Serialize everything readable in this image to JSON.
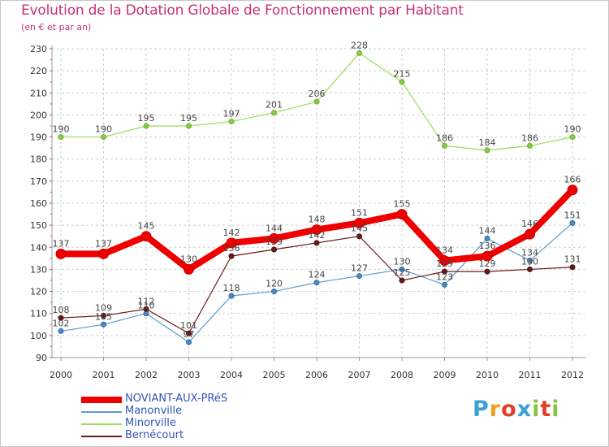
{
  "header": {
    "title": "Evolution de la Dotation Globale de Fonctionnement par Habitant",
    "subtitle": "(en € et par an)"
  },
  "logo": {
    "text": "Proxiti"
  },
  "colors": {
    "noviant": "#ee0000",
    "manonville": "#5b9bd5",
    "minorville": "#99dd55",
    "bernecourt": "#6b1a1a",
    "grid": "#c8c8c8",
    "title": "#c8307a",
    "legend_text": "#3355bb"
  },
  "chart_data": {
    "type": "line",
    "title": "Evolution de la Dotation Globale de Fonctionnement par Habitant",
    "subtitle": "(en € et par an)",
    "xlabel": "",
    "ylabel": "",
    "x": [
      "2000",
      "2001",
      "2002",
      "2003",
      "2004",
      "2005",
      "2006",
      "2007",
      "2008",
      "2009",
      "2010",
      "2011",
      "2012"
    ],
    "ylim": [
      90,
      230
    ],
    "yticks": [
      90,
      100,
      110,
      120,
      130,
      140,
      150,
      160,
      170,
      180,
      190,
      200,
      210,
      220,
      230
    ],
    "grid": true,
    "legend_position": "bottom-left",
    "series": [
      {
        "name": "NOVIANT-AUX-PRéS",
        "color": "#ee0000",
        "values": [
          137,
          137,
          145,
          130,
          142,
          144,
          148,
          151,
          155,
          134,
          136,
          146,
          166
        ]
      },
      {
        "name": "Manonville",
        "color": "#5b9bd5",
        "values": [
          102,
          105,
          110,
          97,
          118,
          120,
          124,
          127,
          130,
          123,
          144,
          134,
          151
        ]
      },
      {
        "name": "Minorville",
        "color": "#99dd55",
        "values": [
          190,
          190,
          195,
          195,
          197,
          201,
          206,
          228,
          215,
          186,
          184,
          186,
          190
        ]
      },
      {
        "name": "Bernécourt",
        "color": "#6b1a1a",
        "values": [
          108,
          109,
          112,
          101,
          136,
          139,
          142,
          145,
          125,
          129,
          129,
          130,
          131
        ]
      }
    ]
  }
}
